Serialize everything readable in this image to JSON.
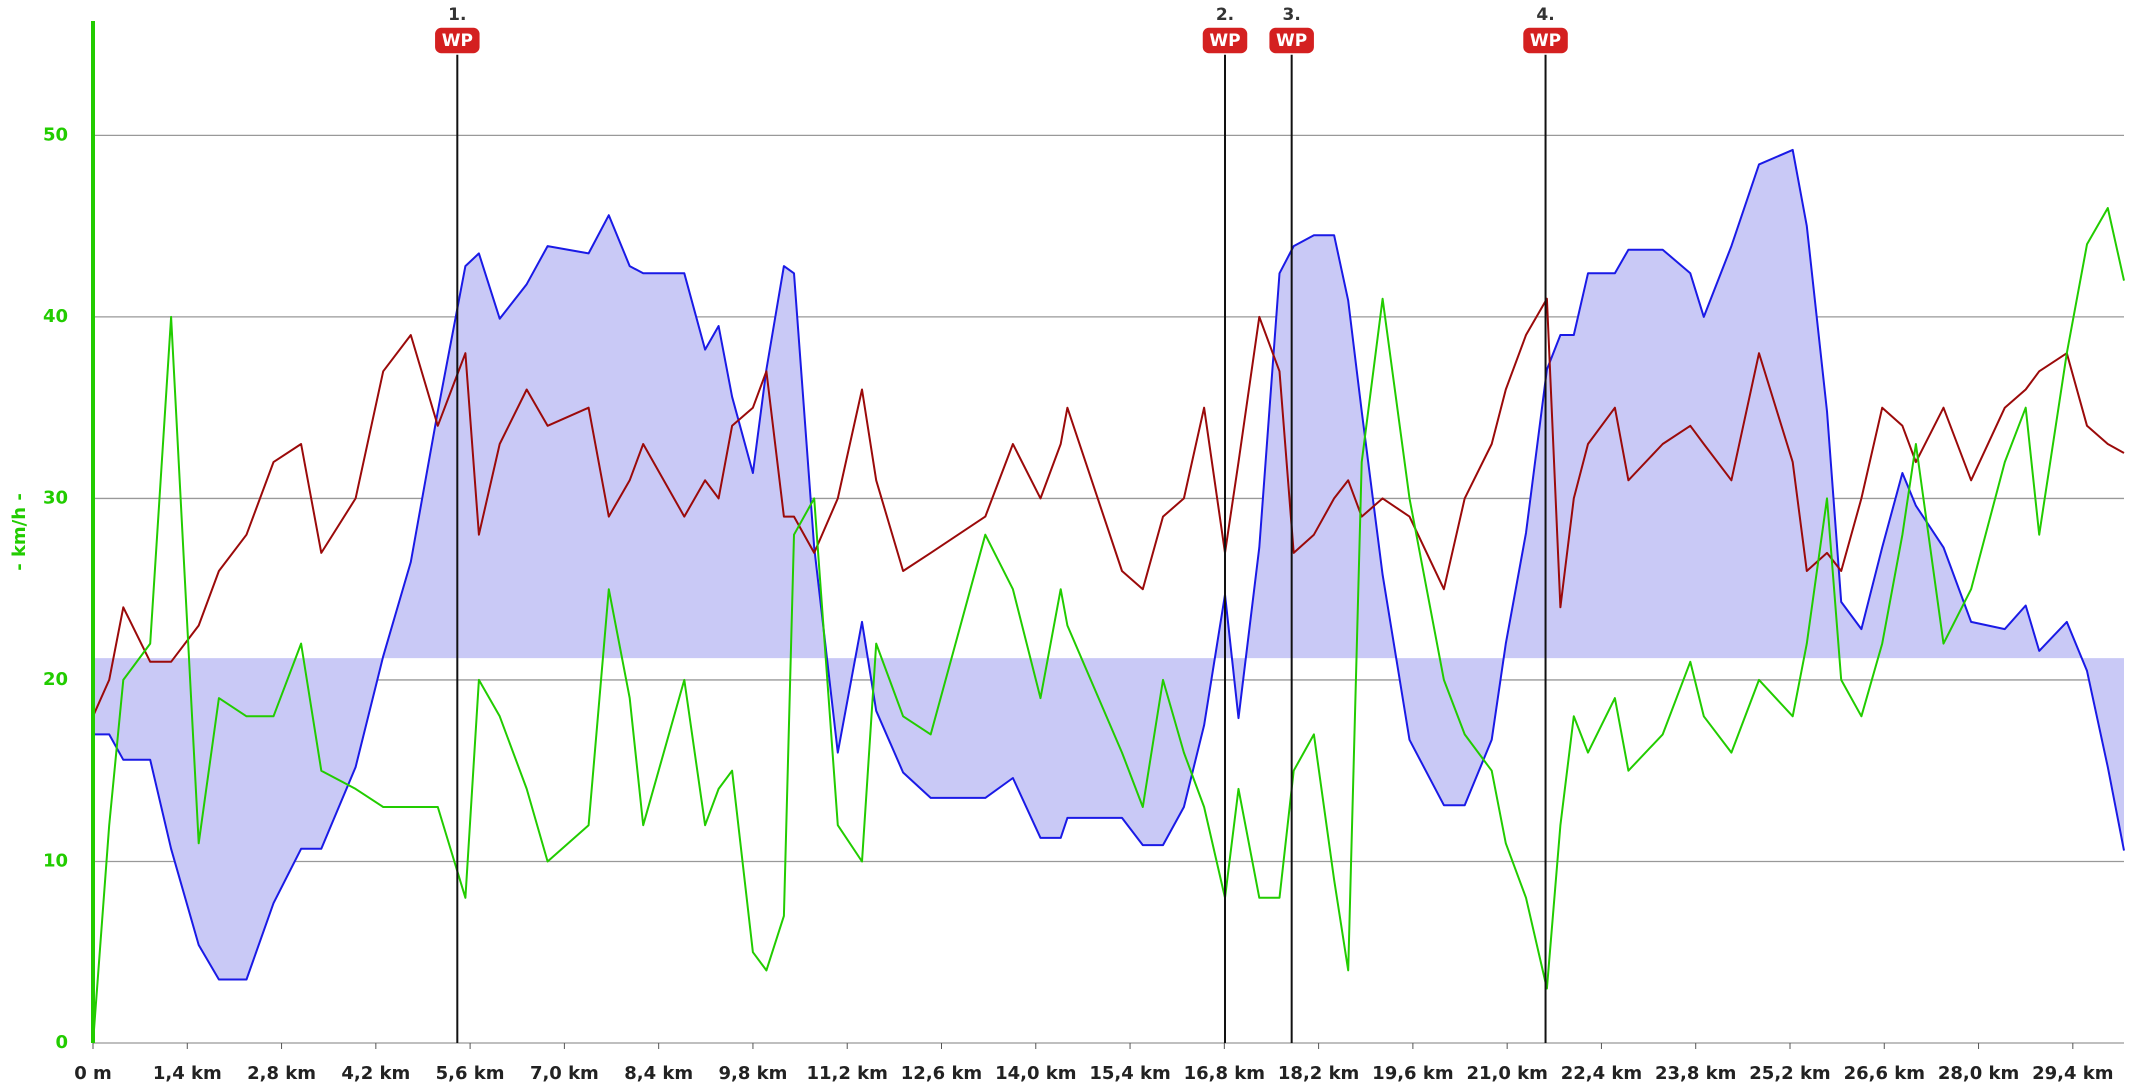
{
  "chart_data": {
    "type": "line",
    "y_axis_label": "- km/h -",
    "xlim": [
      0,
      30.16
    ],
    "ylim": [
      0,
      56.3
    ],
    "yticks": [
      0,
      10,
      20,
      30,
      40,
      50
    ],
    "xticks": [
      {
        "value": 0,
        "label": "0 m"
      },
      {
        "value": 1.4,
        "label": "1,4 km"
      },
      {
        "value": 2.8,
        "label": "2,8 km"
      },
      {
        "value": 4.2,
        "label": "4,2 km"
      },
      {
        "value": 5.6,
        "label": "5,6 km"
      },
      {
        "value": 7.0,
        "label": "7,0 km"
      },
      {
        "value": 8.4,
        "label": "8,4 km"
      },
      {
        "value": 9.8,
        "label": "9,8 km"
      },
      {
        "value": 11.2,
        "label": "11,2 km"
      },
      {
        "value": 12.6,
        "label": "12,6 km"
      },
      {
        "value": 14.0,
        "label": "14,0 km"
      },
      {
        "value": 15.4,
        "label": "15,4 km"
      },
      {
        "value": 16.8,
        "label": "16,8 km"
      },
      {
        "value": 18.2,
        "label": "18,2 km"
      },
      {
        "value": 19.6,
        "label": "19,6 km"
      },
      {
        "value": 21.0,
        "label": "21,0 km"
      },
      {
        "value": 22.4,
        "label": "22,4 km"
      },
      {
        "value": 23.8,
        "label": "23,8 km"
      },
      {
        "value": 25.2,
        "label": "25,2 km"
      },
      {
        "value": 26.6,
        "label": "26,6 km"
      },
      {
        "value": 28.0,
        "label": "28,0 km"
      },
      {
        "value": 29.4,
        "label": "29,4 km"
      }
    ],
    "grid": true,
    "axis_color": "#22cc00",
    "area_baseline": 21.2,
    "area_color": "#c9c9f6",
    "x": [
      0,
      0.24,
      0.45,
      0.85,
      1.16,
      1.57,
      1.87,
      2.28,
      2.68,
      3.09,
      3.39,
      3.9,
      4.31,
      4.72,
      5.12,
      5.53,
      5.73,
      6.04,
      6.44,
      6.75,
      7.36,
      7.66,
      7.97,
      8.17,
      8.78,
      9.09,
      9.29,
      9.49,
      9.8,
      10,
      10.26,
      10.41,
      10.71,
      11.06,
      11.42,
      11.63,
      12.03,
      12.44,
      13.25,
      13.66,
      14.07,
      14.37,
      14.47,
      15.28,
      15.59,
      15.89,
      16.2,
      16.5,
      16.81,
      17.01,
      17.32,
      17.62,
      17.83,
      18.13,
      18.43,
      18.64,
      18.84,
      19.15,
      19.55,
      20.06,
      20.37,
      20.77,
      20.98,
      21.28,
      21.59,
      21.79,
      21.99,
      22.2,
      22.6,
      22.8,
      23.31,
      23.72,
      23.92,
      24.33,
      24.74,
      25.24,
      25.45,
      25.75,
      25.96,
      26.26,
      26.57,
      26.87,
      27.07,
      27.48,
      27.89,
      28.39,
      28.7,
      28.9,
      29.31,
      29.61,
      29.92,
      30.16
    ],
    "series": [
      {
        "color": "#1a1ae6",
        "fill": true,
        "values": [
          17,
          17,
          15.6,
          15.6,
          10.7,
          5.4,
          3.5,
          3.5,
          7.7,
          10.7,
          10.7,
          15.2,
          21.3,
          26.5,
          34.8,
          42.8,
          43.5,
          39.9,
          41.8,
          43.9,
          43.5,
          45.6,
          42.8,
          42.4,
          42.4,
          38.2,
          39.5,
          35.6,
          31.4,
          37.1,
          42.8,
          42.4,
          27.3,
          16,
          23.2,
          18.3,
          14.9,
          13.5,
          13.5,
          14.6,
          11.3,
          11.3,
          12.4,
          12.4,
          10.9,
          10.9,
          13,
          17.5,
          24.7,
          17.9,
          27.3,
          42.4,
          43.9,
          44.5,
          44.5,
          40.9,
          34.8,
          25.8,
          16.7,
          13.1,
          13.1,
          16.7,
          22,
          28.1,
          37.1,
          39,
          39,
          42.4,
          42.4,
          43.7,
          43.7,
          42.4,
          40,
          43.9,
          48.4,
          49.2,
          45,
          34.8,
          24.3,
          22.8,
          27.3,
          31.4,
          29.6,
          27.3,
          23.2,
          22.8,
          24.1,
          21.6,
          23.2,
          20.5,
          15.2,
          10.6
        ]
      },
      {
        "color": "#9b0a0a",
        "values": [
          18,
          20,
          24,
          21,
          21,
          23,
          26,
          28,
          32,
          33,
          27,
          30,
          37,
          39,
          34,
          38,
          28,
          33,
          36,
          34,
          35,
          29,
          31,
          33,
          29,
          31,
          30,
          34,
          35,
          37,
          29,
          29,
          27,
          30,
          36,
          31,
          26,
          27,
          29,
          33,
          30,
          33,
          35,
          26,
          25,
          29,
          30,
          35,
          27,
          32,
          40,
          37,
          27,
          28,
          30,
          31,
          29,
          30,
          29,
          25,
          30,
          33,
          36,
          39,
          41,
          24,
          30,
          33,
          35,
          31,
          33,
          34,
          33,
          31,
          38,
          32,
          26,
          27,
          26,
          30,
          35,
          34,
          32,
          35,
          31,
          35,
          36,
          37,
          38,
          34,
          33,
          32.5
        ]
      },
      {
        "color": "#22cc00",
        "values": [
          0,
          12,
          20,
          22,
          40,
          11,
          19,
          18,
          18,
          22,
          15,
          14,
          13,
          13,
          13,
          8,
          20,
          18,
          14,
          10,
          12,
          25,
          19,
          12,
          20,
          12,
          14,
          15,
          5,
          4,
          7,
          28,
          30,
          12,
          10,
          22,
          18,
          17,
          28,
          25,
          19,
          25,
          23,
          16,
          13,
          20,
          16,
          13,
          8,
          14,
          8,
          8,
          15,
          17,
          9,
          4,
          32,
          41,
          30,
          20,
          17,
          15,
          11,
          8,
          3,
          12,
          18,
          16,
          19,
          15,
          17,
          21,
          18,
          16,
          20,
          18,
          22,
          30,
          20,
          18,
          22,
          28,
          33,
          22,
          25,
          32,
          35,
          28,
          38,
          44,
          46,
          42
        ]
      }
    ],
    "waypoints": [
      {
        "label": "1.",
        "badge": "WP",
        "x": 5.41
      },
      {
        "label": "2.",
        "badge": "WP",
        "x": 16.81
      },
      {
        "label": "3.",
        "badge": "WP",
        "x": 17.8
      },
      {
        "label": "4.",
        "badge": "WP",
        "x": 21.57
      }
    ]
  }
}
